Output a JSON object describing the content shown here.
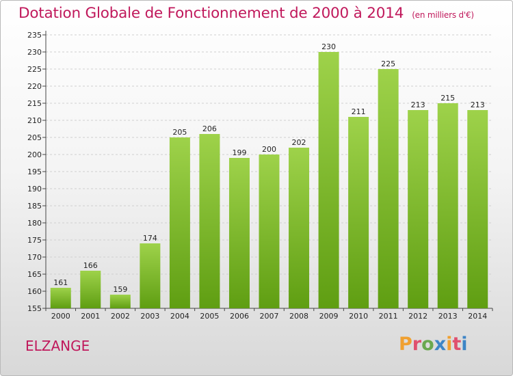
{
  "header": {
    "title": "Dotation Globale de Fonctionnement de 2000 à 2014",
    "subtitle": "(en milliers d'€)"
  },
  "footer": {
    "town": "ELZANGE",
    "brand": "Proxiti",
    "brand_colors": [
      "#f0a030",
      "#e0506e",
      "#6aa84f",
      "#3d85c6",
      "#f0a030",
      "#e0506e",
      "#3d85c6"
    ]
  },
  "chart_data": {
    "type": "bar",
    "categories": [
      "2000",
      "2001",
      "2002",
      "2003",
      "2004",
      "2005",
      "2006",
      "2007",
      "2008",
      "2009",
      "2010",
      "2011",
      "2012",
      "2013",
      "2014"
    ],
    "values": [
      161,
      166,
      159,
      174,
      205,
      206,
      199,
      200,
      202,
      230,
      211,
      225,
      213,
      215,
      213
    ],
    "data_labels": [
      "161",
      "166",
      "159",
      "174",
      "205",
      "206",
      "199",
      "200",
      "202",
      "230",
      "211",
      "225",
      "213",
      "215",
      "213"
    ],
    "yticks": [
      "155",
      "160",
      "165",
      "170",
      "175",
      "180",
      "185",
      "190",
      "195",
      "200",
      "205",
      "210",
      "215",
      "220",
      "225",
      "230",
      "235"
    ],
    "ylim": [
      155,
      235
    ],
    "ytick_step": 5,
    "grid": true,
    "bar_color_top": "#9ed24a",
    "bar_color_bottom": "#5f9e12",
    "xlabel": "",
    "ylabel": ""
  }
}
